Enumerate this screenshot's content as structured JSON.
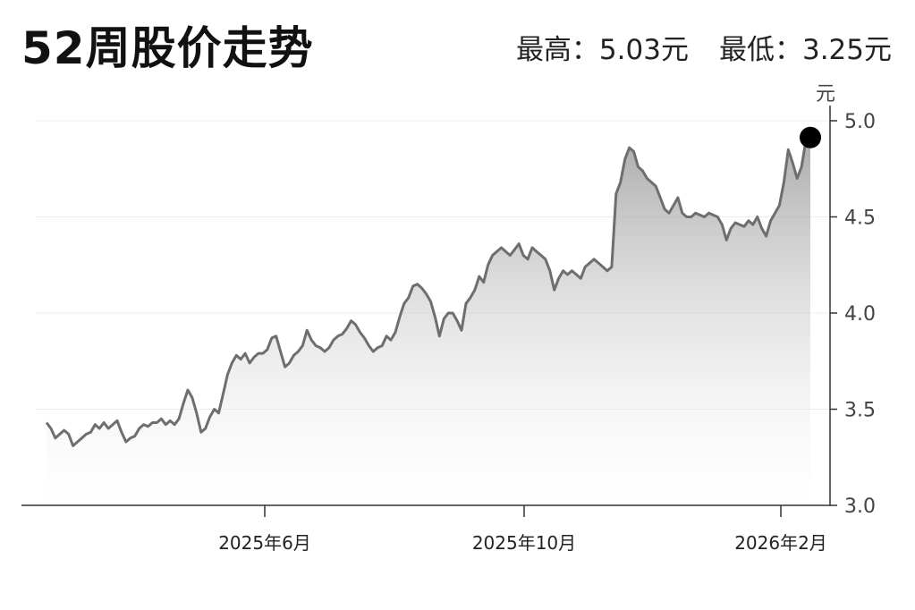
{
  "header": {
    "title": "52周股价走势",
    "high_label": "最高：5.03元",
    "low_label": "最低：3.25元"
  },
  "chart_data": {
    "type": "area",
    "title": "52周股价走势",
    "ylabel": "元",
    "ylim": [
      3.0,
      5.0
    ],
    "yticks": [
      "3.0",
      "3.5",
      "4.0",
      "4.5",
      "5.0"
    ],
    "xticks": [
      "2025年6月",
      "2025年10月",
      "2026年2月"
    ],
    "grid": true,
    "series": [
      {
        "values": [
          3.43,
          3.4,
          3.35,
          3.37,
          3.39,
          3.37,
          3.31,
          3.33,
          3.35,
          3.37,
          3.38,
          3.42,
          3.4,
          3.43,
          3.4,
          3.42,
          3.44,
          3.38,
          3.33,
          3.35,
          3.36,
          3.4,
          3.42,
          3.41,
          3.43,
          3.43,
          3.45,
          3.42,
          3.44,
          3.42,
          3.45,
          3.53,
          3.6,
          3.56,
          3.48,
          3.38,
          3.4,
          3.46,
          3.5,
          3.48,
          3.58,
          3.68,
          3.74,
          3.78,
          3.76,
          3.79,
          3.74,
          3.77,
          3.79,
          3.79,
          3.81,
          3.87,
          3.88,
          3.8,
          3.72,
          3.74,
          3.78,
          3.8,
          3.83,
          3.91,
          3.86,
          3.83,
          3.82,
          3.8,
          3.82,
          3.86,
          3.88,
          3.89,
          3.92,
          3.96,
          3.94,
          3.9,
          3.87,
          3.83,
          3.8,
          3.82,
          3.83,
          3.88,
          3.86,
          3.9,
          3.98,
          4.05,
          4.08,
          4.14,
          4.15,
          4.13,
          4.1,
          4.06,
          3.98,
          3.88,
          3.97,
          4.0,
          4.0,
          3.96,
          3.91,
          4.05,
          4.08,
          4.12,
          4.19,
          4.16,
          4.25,
          4.3,
          4.32,
          4.34,
          4.32,
          4.3,
          4.33,
          4.36,
          4.3,
          4.28,
          4.34,
          4.32,
          4.3,
          4.28,
          4.22,
          4.12,
          4.18,
          4.22,
          4.2,
          4.22,
          4.2,
          4.18,
          4.24,
          4.26,
          4.28,
          4.26,
          4.24,
          4.22,
          4.24,
          4.62,
          4.68,
          4.8,
          4.86,
          4.84,
          4.76,
          4.74,
          4.7,
          4.68,
          4.66,
          4.6,
          4.54,
          4.52,
          4.56,
          4.6,
          4.52,
          4.5,
          4.5,
          4.52,
          4.51,
          4.5,
          4.52,
          4.51,
          4.5,
          4.46,
          4.38,
          4.44,
          4.47,
          4.46,
          4.45,
          4.48,
          4.46,
          4.5,
          4.44,
          4.4,
          4.48,
          4.52,
          4.56,
          4.68,
          4.85,
          4.78,
          4.7,
          4.76,
          4.9,
          4.95
        ]
      }
    ],
    "marker": {
      "value": 4.95
    }
  }
}
